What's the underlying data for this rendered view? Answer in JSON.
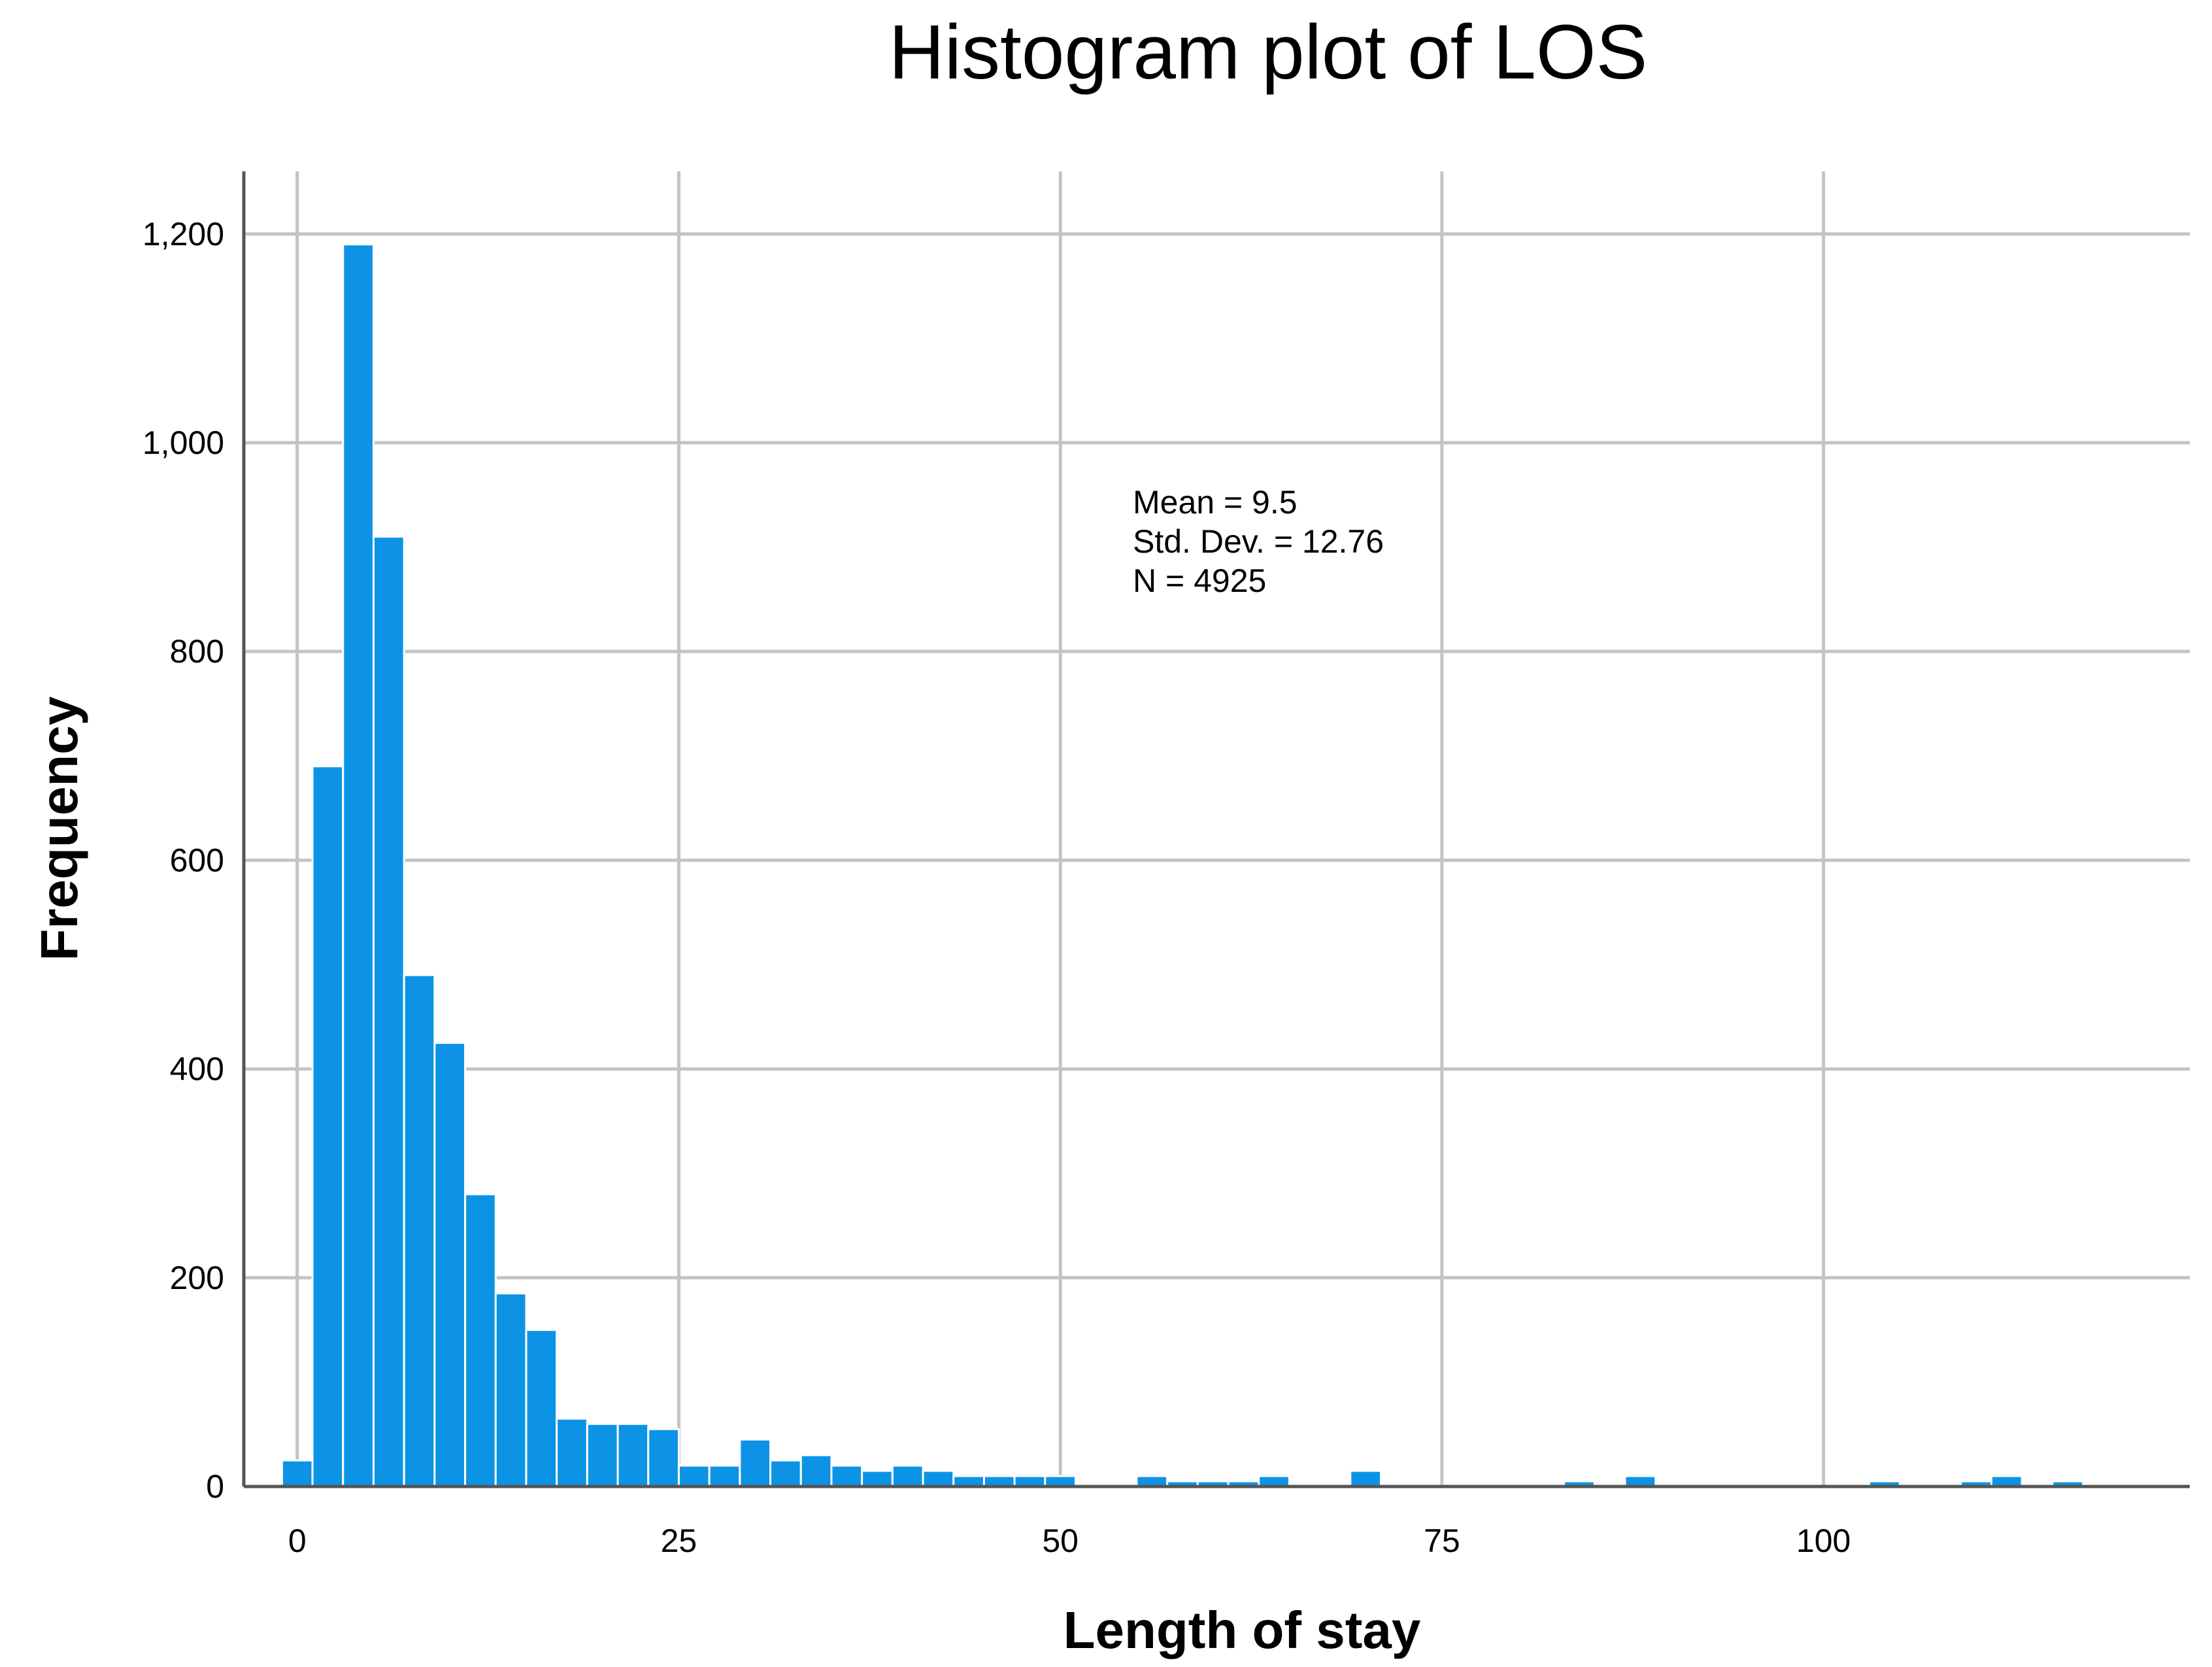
{
  "chart_data": {
    "type": "bar",
    "title": "Histogram plot of LOS",
    "xlabel": "Length of stay",
    "ylabel": "Frequency",
    "xlim": [
      -3.5,
      124
    ],
    "ylim": [
      0,
      1260
    ],
    "grid": true,
    "x_ticks": [
      0,
      25,
      50,
      75,
      100
    ],
    "x_tick_labels": [
      "0",
      "25",
      "50",
      "75",
      "100"
    ],
    "y_ticks": [
      0,
      200,
      400,
      600,
      800,
      1000,
      1200
    ],
    "y_tick_labels": [
      "0",
      "200",
      "400",
      "600",
      "800",
      "1,000",
      "1,200"
    ],
    "bin_width": 2,
    "categories": [
      0,
      2,
      4,
      6,
      8,
      10,
      12,
      14,
      16,
      18,
      20,
      22,
      24,
      26,
      28,
      30,
      32,
      34,
      36,
      38,
      40,
      42,
      44,
      46,
      48,
      50,
      52,
      54,
      56,
      58,
      60,
      62,
      64,
      66,
      68,
      70,
      72,
      74,
      76,
      78,
      80,
      82,
      84,
      86,
      88,
      90,
      92,
      94,
      96,
      98,
      100,
      102,
      104,
      106,
      108,
      110,
      112,
      114,
      116
    ],
    "values": [
      25,
      690,
      1190,
      910,
      490,
      425,
      280,
      185,
      150,
      65,
      60,
      60,
      55,
      20,
      20,
      45,
      25,
      30,
      20,
      15,
      20,
      15,
      10,
      10,
      10,
      10,
      0,
      0,
      10,
      5,
      5,
      5,
      10,
      0,
      0,
      15,
      0,
      0,
      0,
      0,
      0,
      0,
      5,
      0,
      10,
      0,
      0,
      0,
      0,
      0,
      0,
      0,
      5,
      0,
      0,
      5,
      10,
      0,
      5
    ]
  },
  "stats": {
    "lines": [
      "Mean = 9.5",
      "Std. Dev. = 12.76",
      "N = 4925"
    ]
  },
  "colors": {
    "bar": "#0c93e6",
    "grid": "#c4c4c4",
    "axis": "#555555"
  }
}
